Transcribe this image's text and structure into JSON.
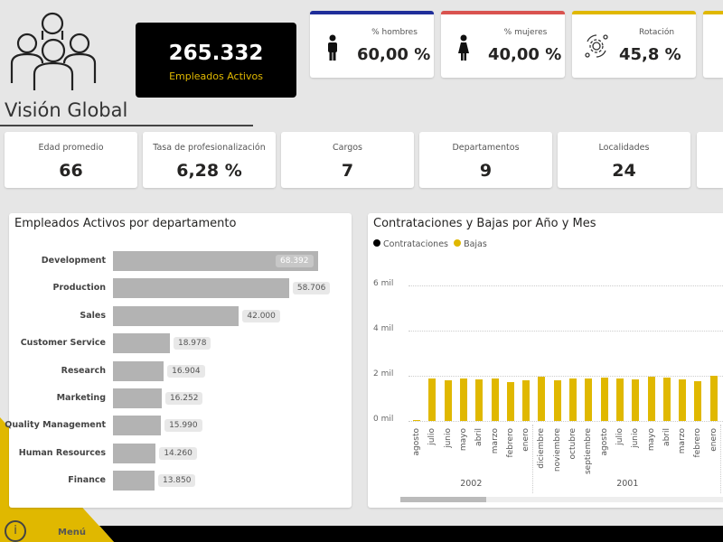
{
  "header": {
    "title": "Visión Global",
    "total_value": "265.332",
    "total_label": "Empleados Activos"
  },
  "kpis_top": [
    {
      "label": "% hombres",
      "value": "60,00 %",
      "icon": "male-icon",
      "color": "#1f2e9a"
    },
    {
      "label": "% mujeres",
      "value": "40,00 %",
      "icon": "female-icon",
      "color": "#d9534f"
    },
    {
      "label": "Rotación",
      "value": "45,8 %",
      "icon": "rotation-gear-icon",
      "color": "#e0b800"
    }
  ],
  "kpis_second": [
    {
      "label": "Edad promedio",
      "value": "66"
    },
    {
      "label": "Tasa de profesionalización",
      "value": "6,28 %"
    },
    {
      "label": "Cargos",
      "value": "7"
    },
    {
      "label": "Departamentos",
      "value": "9"
    },
    {
      "label": "Localidades",
      "value": "24"
    }
  ],
  "chart_data": [
    {
      "type": "bar",
      "title": "Empleados Activos por departamento",
      "categories": [
        "Development",
        "Production",
        "Sales",
        "Customer Service",
        "Research",
        "Marketing",
        "Quality Management",
        "Human Resources",
        "Finance"
      ],
      "values": [
        68392,
        58706,
        42000,
        18978,
        16904,
        16252,
        15990,
        14260,
        13850
      ],
      "labels": [
        "68.392",
        "58.706",
        "42.000",
        "18.978",
        "16.904",
        "16.252",
        "15.990",
        "14.260",
        "13.850"
      ]
    },
    {
      "type": "bar",
      "title": "Contrataciones y Bajas por Año y Mes",
      "legend": [
        "Contrataciones",
        "Bajas"
      ],
      "yticks": [
        "0 mil",
        "2 mil",
        "4 mil",
        "6 mil"
      ],
      "ylim": [
        0,
        6000
      ],
      "years": [
        {
          "label": "2002",
          "count": 8
        },
        {
          "label": "2001",
          "count": 12
        }
      ],
      "months": [
        "agosto",
        "julio",
        "junio",
        "mayo",
        "abril",
        "marzo",
        "febrero",
        "enero",
        "diciembre",
        "noviembre",
        "octubre",
        "septiembre",
        "agosto",
        "julio",
        "junio",
        "mayo",
        "abril",
        "marzo",
        "febrero",
        "enero"
      ],
      "bajas": [
        50,
        1900,
        1800,
        1870,
        1830,
        1870,
        1730,
        1800,
        1950,
        1800,
        1880,
        1880,
        1920,
        1880,
        1850,
        1960,
        1920,
        1850,
        1750,
        2000
      ],
      "contrataciones": [
        0,
        0,
        0,
        0,
        0,
        0,
        0,
        0,
        0,
        0,
        0,
        0,
        0,
        0,
        0,
        0,
        0,
        0,
        0,
        0
      ]
    }
  ],
  "footer": {
    "menu_label": "Menú"
  },
  "colors": {
    "accent": "#e0b800",
    "dark": "#000000"
  }
}
